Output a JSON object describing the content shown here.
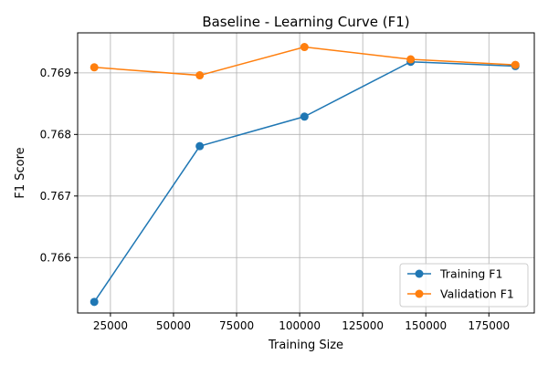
{
  "chart_data": {
    "type": "line",
    "title": "Baseline - Learning Curve (F1)",
    "xlabel": "Training Size",
    "ylabel": "F1 Score",
    "xlim": [
      12000,
      193000
    ],
    "ylim": [
      0.7651,
      0.76965
    ],
    "xticks": [
      25000,
      50000,
      75000,
      100000,
      125000,
      150000,
      175000
    ],
    "xtick_labels": [
      "25000",
      "50000",
      "75000",
      "100000",
      "125000",
      "150000",
      "175000"
    ],
    "yticks": [
      0.766,
      0.767,
      0.768,
      0.769
    ],
    "ytick_labels": [
      "0.766",
      "0.767",
      "0.768",
      "0.769"
    ],
    "grid": true,
    "legend_position": "lower-right",
    "series": [
      {
        "name": "Training F1",
        "color": "#1f77b4",
        "marker": "circle",
        "x": [
          18600,
          60400,
          101900,
          144000,
          185500
        ],
        "y": [
          0.76528,
          0.76781,
          0.76829,
          0.76918,
          0.76911
        ]
      },
      {
        "name": "Validation F1",
        "color": "#ff7f0e",
        "marker": "circle",
        "x": [
          18600,
          60400,
          101900,
          144000,
          185500
        ],
        "y": [
          0.76909,
          0.76896,
          0.76942,
          0.76922,
          0.76913
        ]
      }
    ]
  }
}
